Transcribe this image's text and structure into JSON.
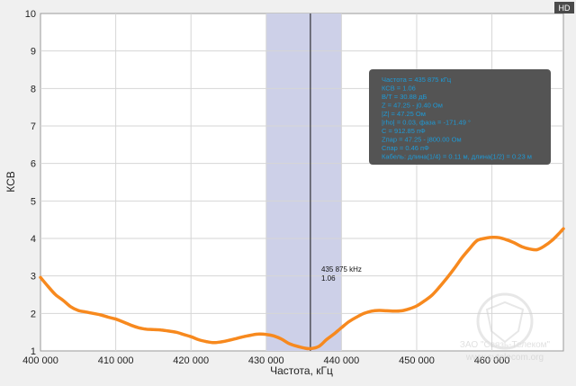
{
  "hd_badge": "HD",
  "watermark": {
    "line1": "ЗАО \"Связь-Телеком\"",
    "line2": "www.svtelecom.org"
  },
  "info_box": {
    "lines": [
      "Частота = 435 875 кГц",
      "КСВ = 1.06",
      "В/Т = 30.88 дБ",
      "Z = 47.25 - j0.40 Ом",
      "|Z| = 47.25 Ом",
      "|rho| = 0.03, фаза = -171.49 °",
      "C = 912.85 пФ",
      "Zпар = 47.25 - j800.00 Ом",
      "Cпар = 0.46 пФ",
      "Кабель: длина(1/4) = 0.11 м, длина(1/2) = 0.23 м"
    ]
  },
  "cursor": {
    "label_freq": "435 875 kHz",
    "label_value": "1.06"
  },
  "colors": {
    "curve": "#f7891e",
    "band": "#cdd0e8",
    "plot_bg": "#ffffff",
    "grid": "#d6d6d6",
    "info_bg": "#545454",
    "info_text": "#1e9ad6"
  },
  "chart_data": {
    "type": "line",
    "title": "",
    "xlabel": "Частота, кГц",
    "ylabel": "КСВ",
    "xlim": [
      400000,
      469500
    ],
    "ylim": [
      1,
      10
    ],
    "x_ticks": [
      400000,
      410000,
      420000,
      430000,
      440000,
      450000,
      460000
    ],
    "x_tick_labels": [
      "400 000",
      "410 000",
      "420 000",
      "430 000",
      "440 000",
      "450 000",
      "460 000"
    ],
    "y_ticks": [
      1,
      2,
      3,
      4,
      5,
      6,
      7,
      8,
      9,
      10
    ],
    "y_tick_labels": [
      "1",
      "2",
      "3",
      "4",
      "5",
      "6",
      "7",
      "8",
      "9",
      "10"
    ],
    "grid": true,
    "highlight_band": [
      430000,
      440000
    ],
    "cursor_x": 435875,
    "series": [
      {
        "x": [
          400000,
          401000,
          402000,
          403000,
          404000,
          405000,
          406000,
          407000,
          408000,
          409000,
          410000,
          411000,
          412000,
          413000,
          414000,
          415000,
          416000,
          417000,
          418000,
          419000,
          420000,
          421000,
          422000,
          423000,
          424000,
          425000,
          426000,
          427000,
          428000,
          429000,
          430000,
          431000,
          432000,
          433000,
          434000,
          435000,
          435875,
          437000,
          438000,
          439000,
          440000,
          441000,
          442000,
          443000,
          444000,
          445000,
          446000,
          447000,
          448000,
          449000,
          450000,
          451000,
          452000,
          453000,
          454000,
          455000,
          456000,
          457000,
          458000,
          459000,
          460000,
          461000,
          462000,
          463000,
          464000,
          465000,
          466000,
          467000,
          468000,
          469000,
          469500
        ],
        "values": [
          2.96,
          2.72,
          2.5,
          2.35,
          2.18,
          2.08,
          2.04,
          2.0,
          1.96,
          1.9,
          1.85,
          1.77,
          1.69,
          1.62,
          1.58,
          1.57,
          1.56,
          1.53,
          1.5,
          1.44,
          1.38,
          1.3,
          1.25,
          1.22,
          1.24,
          1.28,
          1.33,
          1.38,
          1.42,
          1.45,
          1.44,
          1.4,
          1.32,
          1.2,
          1.13,
          1.08,
          1.06,
          1.12,
          1.3,
          1.45,
          1.62,
          1.78,
          1.9,
          2.0,
          2.06,
          2.08,
          2.07,
          2.06,
          2.07,
          2.12,
          2.2,
          2.33,
          2.48,
          2.7,
          2.94,
          3.2,
          3.48,
          3.72,
          3.94,
          4.0,
          4.03,
          4.02,
          3.96,
          3.88,
          3.78,
          3.72,
          3.7,
          3.8,
          3.95,
          4.15,
          4.26
        ]
      }
    ]
  }
}
